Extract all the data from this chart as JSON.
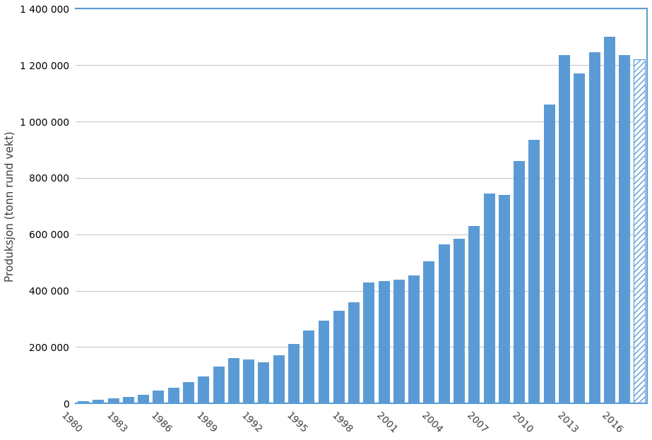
{
  "years": [
    1980,
    1981,
    1982,
    1983,
    1984,
    1985,
    1986,
    1987,
    1988,
    1989,
    1990,
    1991,
    1992,
    1993,
    1994,
    1995,
    1996,
    1997,
    1998,
    1999,
    2000,
    2001,
    2002,
    2003,
    2004,
    2005,
    2006,
    2007,
    2008,
    2009,
    2010,
    2011,
    2012,
    2013,
    2014,
    2015,
    2016,
    2017
  ],
  "values": [
    8000,
    14000,
    18000,
    23000,
    30000,
    45000,
    55000,
    75000,
    95000,
    130000,
    160000,
    155000,
    145000,
    170000,
    210000,
    260000,
    295000,
    330000,
    360000,
    430000,
    435000,
    440000,
    455000,
    505000,
    565000,
    585000,
    630000,
    745000,
    740000,
    860000,
    935000,
    1060000,
    1235000,
    1170000,
    1245000,
    1300000,
    1235000,
    1220000
  ],
  "bar_color": "#5B9BD5",
  "background_color": "#FFFFFF",
  "ylabel": "Produksjon (tonn rund vekt)",
  "ylim": [
    0,
    1400000
  ],
  "ytick_step": 200000,
  "grid_color": "#C8C8C8",
  "spine_color": "#5B9BD5",
  "xlabel_rotation": -45,
  "xtick_step": 3,
  "bar_width": 0.75
}
